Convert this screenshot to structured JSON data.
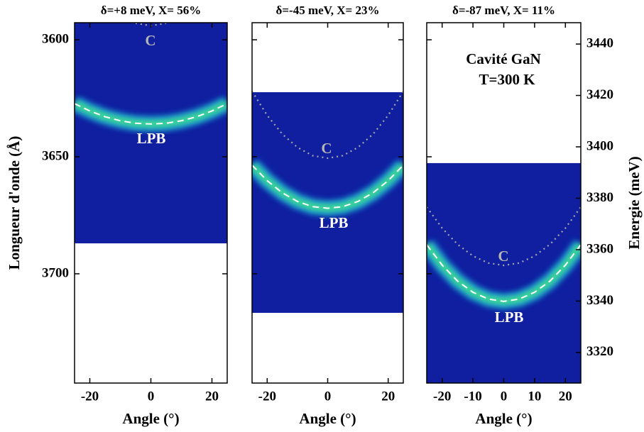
{
  "chart_data": [
    {
      "type": "line",
      "title": "δ=+8 meV, X= 56%",
      "xlabel": "Angle (°)",
      "ylabel": "Longueur d'onde (Å)",
      "xlim": [
        -25,
        25
      ],
      "xticks": [
        -20,
        0,
        20
      ],
      "ylim": [
        3746.7,
        3592.7
      ],
      "yticks": [
        3600,
        3650,
        3700
      ],
      "image_range": [
        3592.7,
        3687
      ],
      "image_color": "#0f1fa0",
      "series": [
        {
          "name": "LPB",
          "color": "#ffffff",
          "x": [
            -25,
            -20,
            -15,
            -10,
            -5,
            0,
            5,
            10,
            15,
            20,
            25
          ],
          "values": [
            3627.3,
            3630.4,
            3632.9,
            3634.6,
            3635.7,
            3636,
            3635.7,
            3634.6,
            3632.9,
            3630.4,
            3627.3
          ]
        },
        {
          "name": "C",
          "color": "#a8a8a8",
          "x": [
            -5,
            0,
            5
          ],
          "values": [
            3592.9,
            3594,
            3592.9
          ]
        }
      ],
      "annotations": [
        "C",
        "LPB"
      ]
    },
    {
      "type": "line",
      "title": "δ=-45 meV, X= 23%",
      "xlabel": "Angle (°)",
      "xlim": [
        -25,
        25
      ],
      "xticks": [
        -20,
        0,
        20
      ],
      "ylim": [
        3746.7,
        3592.7
      ],
      "image_range": [
        3622.4,
        3716.7
      ],
      "image_color": "#0f1fa0",
      "series": [
        {
          "name": "LPB",
          "color": "#ffffff",
          "x": [
            -25,
            -20,
            -15,
            -10,
            -5,
            0,
            5,
            10,
            15,
            20,
            25
          ],
          "values": [
            3653.6,
            3660.2,
            3665.4,
            3669.1,
            3671.3,
            3672,
            3671.3,
            3669.1,
            3665.4,
            3660.2,
            3653.6
          ]
        },
        {
          "name": "C",
          "color": "#a8a8a8",
          "x": [
            -25,
            -20,
            -15,
            -10,
            -5,
            0,
            5,
            10,
            15,
            20,
            25
          ],
          "values": [
            3622,
            3632.3,
            3640.3,
            3646,
            3649.5,
            3650.6,
            3649.5,
            3646,
            3640.3,
            3632.3,
            3622
          ]
        }
      ],
      "annotations": [
        "C",
        "LPB"
      ]
    },
    {
      "type": "line",
      "title": "δ=-87 meV, X= 11%",
      "xlabel": "Angle (°)",
      "y2label": "Energie (meV)",
      "xlim": [
        -25,
        25
      ],
      "xticks": [
        -20,
        -10,
        0,
        10,
        20
      ],
      "ylim": [
        3746.7,
        3592.7
      ],
      "y2lim": [
        3308.1,
        3448.3
      ],
      "y2ticks": [
        3320,
        3340,
        3360,
        3380,
        3400,
        3420,
        3440
      ],
      "image_range": [
        3652.7,
        3746.7
      ],
      "image_color": "#0f1fa0",
      "series": [
        {
          "name": "LPB",
          "color": "#ffffff",
          "x": [
            -25,
            -20,
            -15,
            -10,
            -5,
            0,
            5,
            10,
            15,
            20,
            25
          ],
          "values": [
            3687.6,
            3696.3,
            3703.1,
            3707.9,
            3710.8,
            3711.8,
            3710.8,
            3707.9,
            3703.1,
            3696.3,
            3687.6
          ]
        },
        {
          "name": "C",
          "color": "#a8a8a8",
          "x": [
            -25,
            -20,
            -15,
            -10,
            -5,
            0,
            5,
            10,
            15,
            20,
            25
          ],
          "values": [
            3671.5,
            3680.5,
            3687.4,
            3692.4,
            3695.4,
            3696.4,
            3695.4,
            3692.4,
            3687.4,
            3680.5,
            3671.5
          ]
        }
      ],
      "annotations": [
        "C",
        "LPB",
        "Cavité GaN",
        "T=300 K"
      ]
    }
  ]
}
